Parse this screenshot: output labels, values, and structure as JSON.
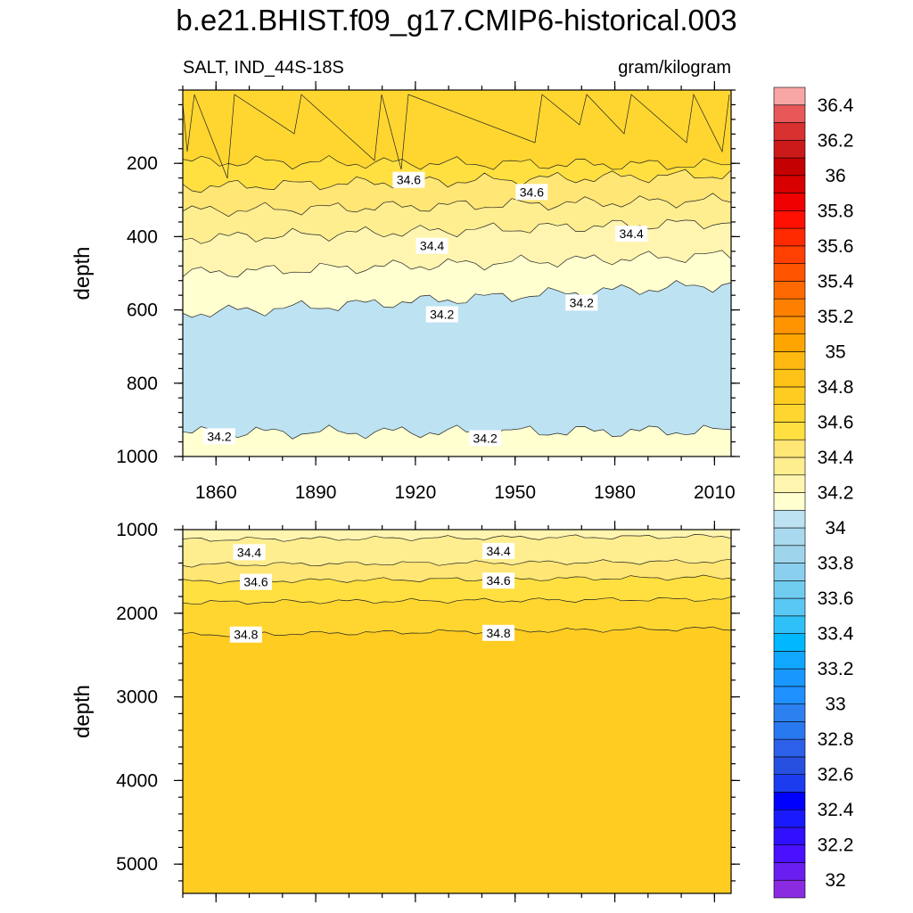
{
  "chart_data": {
    "type": "heatmap",
    "title": "b.e21.BHIST.f09_g17.CMIP6-historical.003",
    "left_string": "SALT, IND_44S-18S",
    "right_string": "gram/kilogram",
    "colorbar": {
      "levels": [
        32,
        32.1,
        32.2,
        32.3,
        32.4,
        32.5,
        32.6,
        32.7,
        32.8,
        32.9,
        33,
        33.1,
        33.2,
        33.3,
        33.4,
        33.5,
        33.6,
        33.7,
        33.8,
        33.9,
        34,
        34.1,
        34.2,
        34.3,
        34.4,
        34.5,
        34.6,
        34.7,
        34.8,
        34.9,
        35,
        35.1,
        35.2,
        35.3,
        35.4,
        35.5,
        35.6,
        35.7,
        35.8,
        35.9,
        36,
        36.1,
        36.2,
        36.3,
        36.4,
        36.5
      ],
      "tick_labels": [
        "32",
        "32.2",
        "32.4",
        "32.6",
        "32.8",
        "33",
        "33.2",
        "33.4",
        "33.6",
        "33.8",
        "34",
        "34.2",
        "34.4",
        "34.6",
        "34.8",
        "35",
        "35.2",
        "35.4",
        "35.6",
        "35.8",
        "36",
        "36.2",
        "36.4"
      ],
      "colors": [
        "#8a2be2",
        "#6a1ff0",
        "#4a10ff",
        "#3010ff",
        "#1a1aff",
        "#0000ff",
        "#1c3cf0",
        "#2850e0",
        "#2c60e8",
        "#2878f0",
        "#2c80f0",
        "#1e90ff",
        "#1898ff",
        "#10a8ff",
        "#00b8ff",
        "#30c0f8",
        "#5ac8f5",
        "#70cdf0",
        "#8ad0ee",
        "#9fd5ec",
        "#a9d9ee",
        "#bde2f2",
        "#ffffd0",
        "#fff5b0",
        "#ffee90",
        "#ffe675",
        "#ffe040",
        "#ffd630",
        "#ffcc22",
        "#ffc318",
        "#ffb810",
        "#ffa500",
        "#ff9400",
        "#ff8000",
        "#ff6a00",
        "#ff5500",
        "#ff4000",
        "#ff2a00",
        "#ff1000",
        "#f00000",
        "#d80000",
        "#c40000",
        "#cc1a1a",
        "#d93030",
        "#e85858",
        "#f7a5a5"
      ]
    },
    "panels": [
      {
        "name": "upper",
        "xlabel": "",
        "ylabel": "depth",
        "xlim": [
          1850,
          2015
        ],
        "xticks": [
          "1860",
          "1890",
          "1920",
          "1950",
          "1980",
          "2010"
        ],
        "ylim": [
          1000,
          0
        ],
        "yticks": [
          "200",
          "400",
          "600",
          "800",
          "1000"
        ],
        "contour_labels": [
          {
            "text": "34.6",
            "x": 1918,
            "y": 245
          },
          {
            "text": "34.6",
            "x": 1955,
            "y": 278
          },
          {
            "text": "34.4",
            "x": 1985,
            "y": 392
          },
          {
            "text": "34.4",
            "x": 1925,
            "y": 425
          },
          {
            "text": "34.2",
            "x": 1928,
            "y": 612
          },
          {
            "text": "34.2",
            "x": 1970,
            "y": 580
          },
          {
            "text": "34.2",
            "x": 1861,
            "y": 945
          },
          {
            "text": "34.2",
            "x": 1941,
            "y": 950
          }
        ],
        "bands": [
          {
            "lo": 34.7,
            "hi": 34.8,
            "top_depth": [
              0,
              0
            ]
          },
          {
            "lo": 34.6,
            "hi": 34.7,
            "top_depth": [
              195,
              205
            ]
          },
          {
            "lo": 34.5,
            "hi": 34.6,
            "top_depth": [
              265,
              230
            ]
          },
          {
            "lo": 34.4,
            "hi": 34.5,
            "top_depth": [
              330,
              300
            ]
          },
          {
            "lo": 34.3,
            "hi": 34.4,
            "top_depth": [
              405,
              360
            ]
          },
          {
            "lo": 34.2,
            "hi": 34.3,
            "top_depth": [
              500,
              450
            ]
          },
          {
            "lo": 34.1,
            "hi": 34.2,
            "top_depth": [
              610,
              530
            ]
          },
          {
            "lo": 34.2,
            "hi": 34.3,
            "top_depth": [
              935,
              930
            ]
          }
        ]
      },
      {
        "name": "lower",
        "xlabel": "",
        "ylabel": "depth",
        "xlim": [
          1850,
          2015
        ],
        "ylim": [
          5350,
          1000
        ],
        "yticks": [
          "1000",
          "2000",
          "3000",
          "4000",
          "5000"
        ],
        "contour_labels": [
          {
            "text": "34.4",
            "x": 1870,
            "y": 1270
          },
          {
            "text": "34.4",
            "x": 1945,
            "y": 1255
          },
          {
            "text": "34.6",
            "x": 1872,
            "y": 1625
          },
          {
            "text": "34.6",
            "x": 1945,
            "y": 1610
          },
          {
            "text": "34.8",
            "x": 1869,
            "y": 2255
          },
          {
            "text": "34.8",
            "x": 1945,
            "y": 2235
          }
        ],
        "bands": [
          {
            "lo": 34.3,
            "hi": 34.4,
            "top_depth": [
              1000,
              1000
            ]
          },
          {
            "lo": 34.4,
            "hi": 34.5,
            "top_depth": [
              1120,
              1080
            ]
          },
          {
            "lo": 34.5,
            "hi": 34.6,
            "top_depth": [
              1420,
              1380
            ]
          },
          {
            "lo": 34.6,
            "hi": 34.7,
            "top_depth": [
              1620,
              1570
            ]
          },
          {
            "lo": 34.7,
            "hi": 34.8,
            "top_depth": [
              1870,
              1830
            ]
          },
          {
            "lo": 34.8,
            "hi": 34.9,
            "top_depth": [
              2260,
              2180
            ]
          }
        ]
      }
    ]
  }
}
